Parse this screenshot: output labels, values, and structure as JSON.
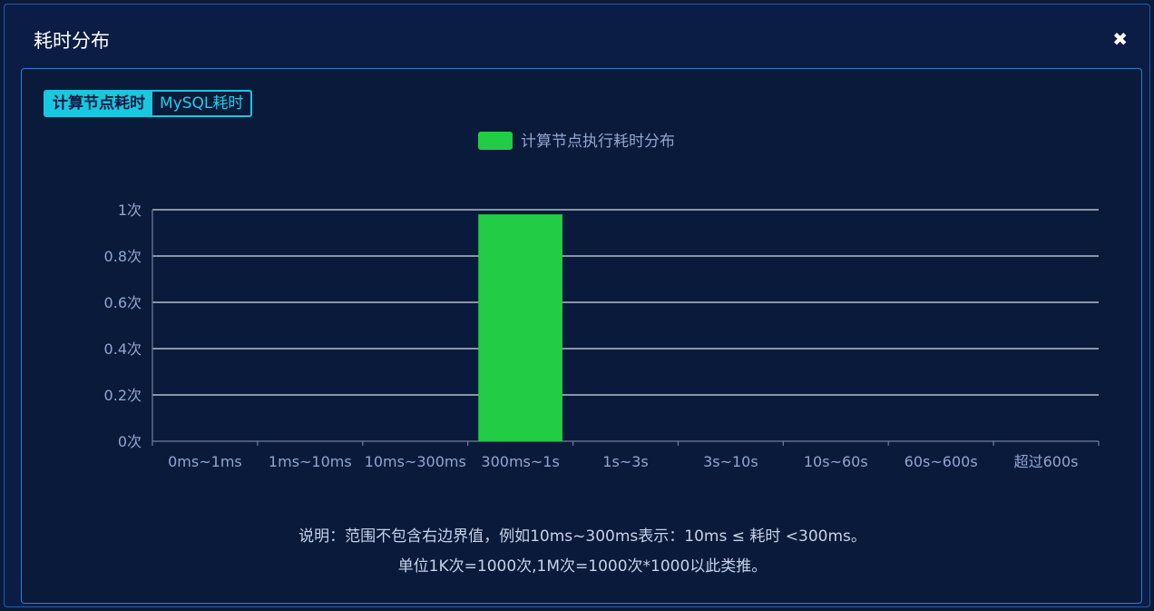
{
  "dialog": {
    "title": "耗时分布",
    "close_icon": "close-icon"
  },
  "tabs": [
    {
      "label": "计算节点耗时",
      "active": true
    },
    {
      "label": "MySQL耗时",
      "active": false
    }
  ],
  "colors": {
    "bar": "#22cc44",
    "tab_accent": "#19c7e0",
    "axis_text": "#8fa7cf",
    "grid": "#d8dde6"
  },
  "chart_data": {
    "type": "bar",
    "categories": [
      "0ms~1ms",
      "1ms~10ms",
      "10ms~300ms",
      "300ms~1s",
      "1s~3s",
      "3s~10s",
      "10s~60s",
      "60s~600s",
      "超过600s"
    ],
    "series": [
      {
        "name": "计算节点执行耗时分布",
        "values": [
          0,
          0,
          0,
          0.98,
          0,
          0,
          0,
          0,
          0
        ]
      }
    ],
    "y_ticks": [
      "0次",
      "0.2次",
      "0.4次",
      "0.6次",
      "0.8次",
      "1次"
    ],
    "ylim": [
      0,
      1
    ],
    "legend_position": "top-center",
    "grid": true
  },
  "notes": {
    "line1": "说明：范围不包含右边界值，例如10ms~300ms表示：10ms ≤ 耗时 <300ms。",
    "line2": "单位1K次=1000次,1M次=1000次*1000以此类推。"
  }
}
